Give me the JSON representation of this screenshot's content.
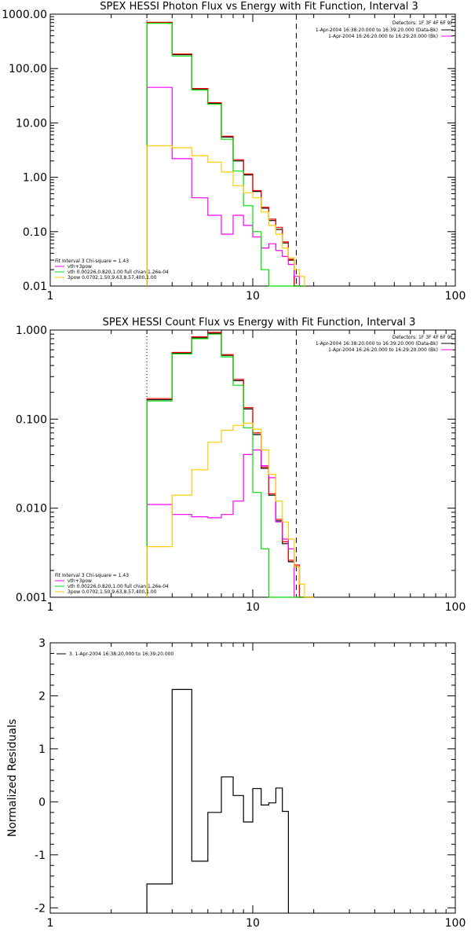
{
  "chart_data": [
    {
      "type": "line",
      "title": "SPEX HESSI Photon Flux vs Energy with Fit Function, Interval 3",
      "xscale": "log",
      "yscale": "log",
      "xlim": [
        1,
        100
      ],
      "ylim": [
        0.01,
        1000
      ],
      "x_ticks": [
        "1",
        "10",
        "100"
      ],
      "y_ticks": [
        "0.01",
        "0.10",
        "1.00",
        "10.00",
        "100.00",
        "1000.00"
      ],
      "annotations": {
        "detectors": "Detectors: 1F 3F 4F 6F 9F",
        "legend_line1": "1-Apr-2004 16:38:20.000 to 16:39:20.000 (Data-Bk)",
        "legend_line2": "1-Apr-2004 16:26:20.000 to 16:29:20.000 (Bk)",
        "fit_header": "Fit Interval  3    Chi-square = 1.43",
        "fit_1": "vth+3pow",
        "fit_2": "vth 0.00226,0.820,1.00  full chian 1.26e-04",
        "fit_3": "3pow 0.0702,1.50,9.63,8.57,400,1.00"
      },
      "edges": [
        3,
        4,
        5,
        6,
        7,
        8,
        9,
        10,
        11,
        12,
        13,
        14,
        15,
        16,
        17,
        18
      ],
      "series": [
        {
          "name": "Data-Bk",
          "color": "#000000",
          "values": [
            700,
            180,
            42,
            23,
            5.5,
            2.0,
            1.1,
            0.55,
            0.27,
            0.16,
            0.11,
            0.062,
            0.03,
            0,
            0
          ]
        },
        {
          "name": "Bk",
          "color": "#ff0000",
          "values": [
            710,
            185,
            43,
            23.5,
            5.7,
            2.1,
            1.15,
            0.57,
            0.28,
            0.17,
            0.12,
            0.065,
            0.031,
            0,
            0
          ]
        },
        {
          "name": "vth+3pow",
          "color": "#ff00ff",
          "values": [
            45,
            2.2,
            0.42,
            0.2,
            0.09,
            0.2,
            0.13,
            0.08,
            0.05,
            0.06,
            0.045,
            0.035,
            0.025,
            0.015,
            0
          ]
        },
        {
          "name": "vth",
          "color": "#00dd00",
          "values": [
            680,
            170,
            40,
            22,
            5.0,
            1.3,
            0.3,
            0.1,
            0.02,
            0,
            0,
            0,
            0,
            0,
            0
          ]
        },
        {
          "name": "3pow",
          "color": "#ffcc00",
          "values": [
            3.8,
            3.5,
            2.5,
            1.9,
            1.25,
            0.7,
            0.52,
            0.42,
            0.23,
            0.13,
            0.09,
            0.05,
            0.033,
            0.02,
            0.015
          ]
        }
      ],
      "vlines": [
        {
          "x": 3,
          "style": "dotted"
        },
        {
          "x": 16.4,
          "style": "dashed"
        }
      ]
    },
    {
      "type": "line",
      "title": "SPEX HESSI Count Flux vs Energy with Fit Function, Interval 3",
      "xscale": "log",
      "yscale": "log",
      "xlim": [
        1,
        100
      ],
      "ylim": [
        0.001,
        1
      ],
      "x_ticks": [
        "1",
        "10",
        "100"
      ],
      "y_ticks": [
        "0.001",
        "0.010",
        "0.100",
        "1.000"
      ],
      "annotations": {
        "detectors": "Detectors: 1F 3F 4F 6F 9F",
        "legend_line1": "1-Apr-2004 16:38:20.000 to 16:39:20.000 (Data-Bk)",
        "legend_line2": "1-Apr-2004 16:26:20.000 to 16:29:20.000 (Bk)",
        "fit_header": "Fit Interval  3    Chi-square = 1.43",
        "fit_1": "vth+3pow",
        "fit_2": "vth 0.00226,0.820,1.00  full chian 1.26e-04",
        "fit_3": "3pow 0.0702,1.50,9.63,8.57,400,1.00"
      },
      "edges": [
        3,
        4,
        5,
        6,
        7,
        8,
        9,
        10,
        11,
        12,
        13,
        14,
        15,
        16,
        17,
        18,
        20
      ],
      "series": [
        {
          "name": "Data-Bk",
          "color": "#000000",
          "values": [
            0.165,
            0.55,
            0.82,
            0.92,
            0.52,
            0.27,
            0.13,
            0.067,
            0.028,
            0.014,
            0.0072,
            0.004,
            0.0025,
            0.0022,
            0,
            0
          ]
        },
        {
          "name": "Bk",
          "color": "#ff0000",
          "values": [
            0.17,
            0.56,
            0.84,
            0.94,
            0.53,
            0.28,
            0.135,
            0.07,
            0.029,
            0.0145,
            0.0075,
            0.0042,
            0.0026,
            0.0023,
            0,
            0
          ]
        },
        {
          "name": "vth+3pow",
          "color": "#ff00ff",
          "values": [
            0.011,
            0.0085,
            0.008,
            0.0078,
            0.0085,
            0.012,
            0.04,
            0.045,
            0.03,
            0.022,
            0.007,
            0.0045,
            0.0035,
            0.001,
            0,
            0
          ]
        },
        {
          "name": "vth",
          "color": "#00dd00",
          "values": [
            0.16,
            0.54,
            0.8,
            0.9,
            0.5,
            0.24,
            0.08,
            0.015,
            0.0035,
            0.001,
            0,
            0,
            0,
            0,
            0,
            0
          ]
        },
        {
          "name": "3pow",
          "color": "#ffcc00",
          "values": [
            0.0037,
            0.014,
            0.027,
            0.055,
            0.075,
            0.085,
            0.09,
            0.077,
            0.045,
            0.024,
            0.012,
            0.007,
            0.0045,
            0.0022,
            0.0014,
            0.001
          ]
        }
      ],
      "vlines": [
        {
          "x": 3,
          "style": "dotted"
        },
        {
          "x": 16.4,
          "style": "dashed"
        }
      ]
    },
    {
      "type": "line",
      "title": "",
      "ylabel": "Normalized Residuals",
      "xscale": "log",
      "xlim": [
        1,
        100
      ],
      "ylim": [
        -2.1,
        3
      ],
      "x_ticks": [
        "1",
        "10",
        "100"
      ],
      "y_ticks": [
        "-2",
        "-1",
        "0",
        "1",
        "2",
        "3"
      ],
      "legend": "3. 1-Apr-2004 16:38:20.000 to 16:39:20.000",
      "edges": [
        3,
        4,
        5,
        6,
        7,
        8,
        9,
        10,
        11,
        12,
        13,
        14,
        15,
        16
      ],
      "series": [
        {
          "name": "3. 1-Apr-2004 16:38:20.000 to 16:39:20.000",
          "color": "#000000",
          "values": [
            -1.55,
            2.12,
            -1.12,
            -0.2,
            0.47,
            0.12,
            -0.38,
            0.25,
            -0.06,
            -0.02,
            0.26,
            -0.18
          ]
        }
      ]
    }
  ]
}
